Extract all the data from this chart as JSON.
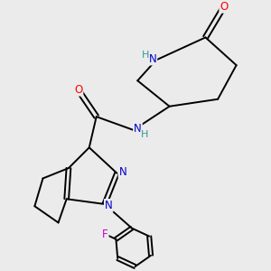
{
  "background_color": "#ebebeb",
  "atom_colors": {
    "C": "#000000",
    "N": "#0000cc",
    "O": "#ff0000",
    "F": "#cc00cc",
    "H": "#339999"
  },
  "figsize": [
    3.0,
    3.0
  ],
  "dpi": 100,
  "lw": 1.4,
  "fs": 8.5
}
